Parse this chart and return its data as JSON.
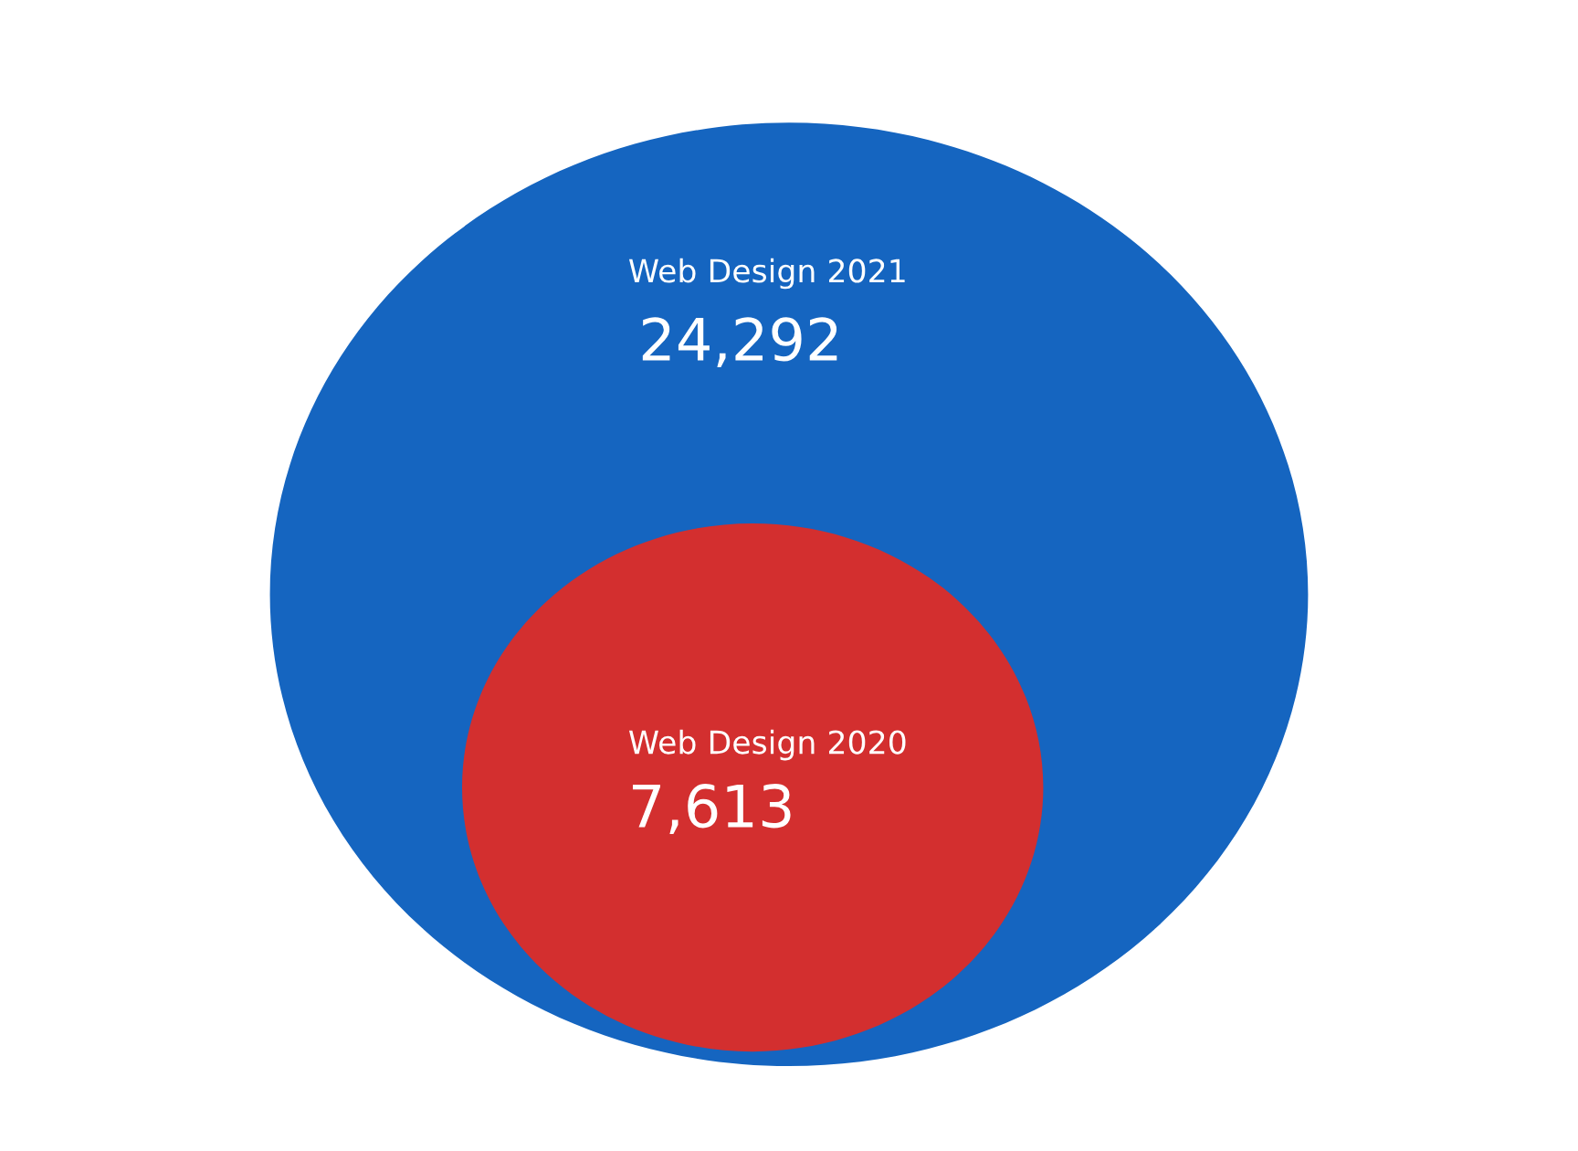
{
  "chart_data": {
    "type": "other",
    "categories": [
      "Web Design 2021",
      "Web Design 2020"
    ],
    "values": [
      24292,
      7613
    ],
    "colors": [
      "#1565c0",
      "#d32f2f"
    ],
    "value_labels": [
      "24,292",
      "7,613"
    ]
  }
}
